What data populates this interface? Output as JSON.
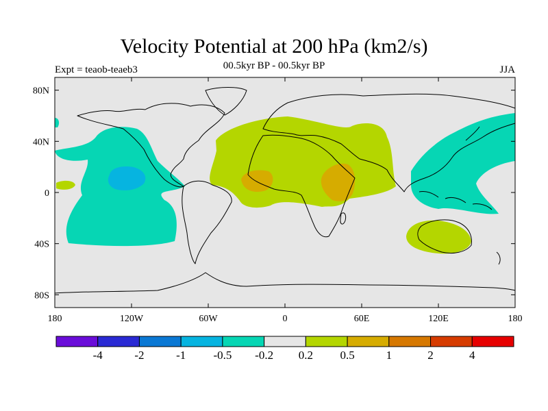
{
  "header": {
    "title": "Velocity Potential at 200 hPa (km2/s)",
    "subtitle_center": "00.5kyr BP - 00.5kyr BP",
    "subtitle_left": "Expt = teaob-teaeb3",
    "subtitle_right": "JJA"
  },
  "map": {
    "projection": "cylindrical-equidistant",
    "lon_range": [
      -180,
      180
    ],
    "lat_range": [
      -90,
      90
    ],
    "x_ticks": [
      {
        "lon": -180,
        "label": "180"
      },
      {
        "lon": -120,
        "label": "120W"
      },
      {
        "lon": -60,
        "label": "60W"
      },
      {
        "lon": 0,
        "label": "0"
      },
      {
        "lon": 60,
        "label": "60E"
      },
      {
        "lon": 120,
        "label": "120E"
      },
      {
        "lon": 180,
        "label": "180"
      }
    ],
    "y_ticks": [
      {
        "lat": 80,
        "label": "80N"
      },
      {
        "lat": 40,
        "label": "40N"
      },
      {
        "lat": 0,
        "label": "0"
      },
      {
        "lat": -40,
        "label": "40S"
      },
      {
        "lat": -80,
        "label": "80S"
      }
    ],
    "background_color": "#e6e6e6",
    "coastline_color": "#000000"
  },
  "colorbar": {
    "colors": [
      "#6a0dd9",
      "#2a2ad4",
      "#0a78d4",
      "#06b4e0",
      "#06d6b4",
      "#e6e6e6",
      "#b4d600",
      "#d6ac00",
      "#d67800",
      "#d63c00",
      "#e60000"
    ],
    "labels": [
      "-4",
      "-2",
      "-1",
      "-0.5",
      "-0.2",
      "0.2",
      "0.5",
      "1",
      "2",
      "4"
    ]
  }
}
